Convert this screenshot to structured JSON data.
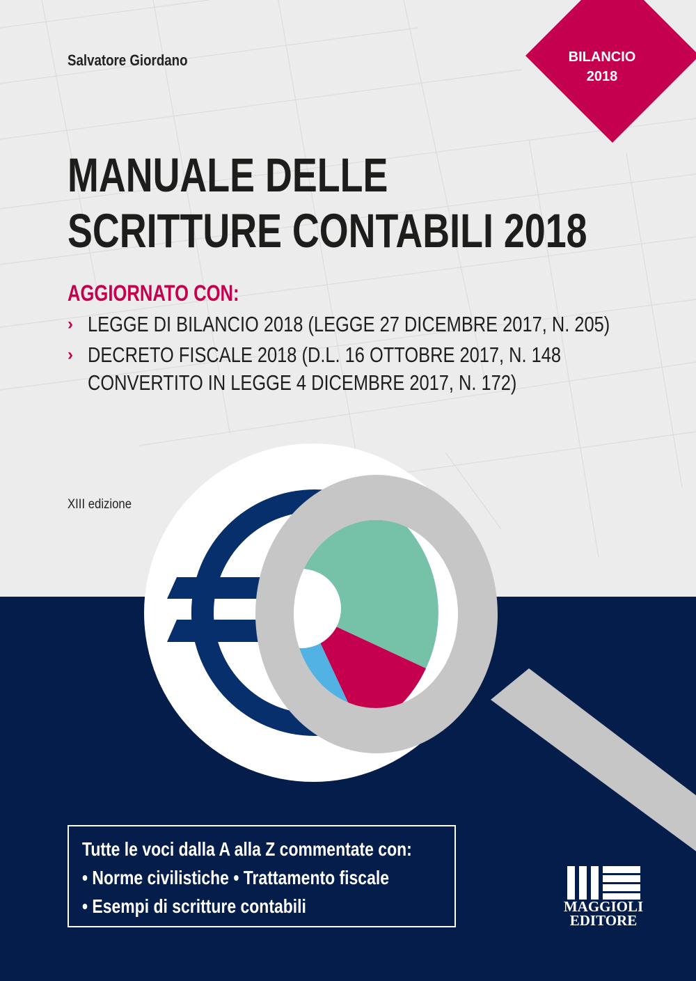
{
  "author": "Salvatore Giordano",
  "badge": {
    "line1": "BILANCIO",
    "line2": "2018"
  },
  "title": {
    "line1": "MANUALE DELLE",
    "line2": "SCRITTURE CONTABILI 2018"
  },
  "updated_heading": "AGGIORNATO CON:",
  "bullet_glyph": "›",
  "updates": [
    {
      "lines": [
        "LEGGE DI BILANCIO 2018 (LEGGE 27 DICEMBRE 2017, N. 205)"
      ]
    },
    {
      "lines": [
        "DECRETO FISCALE 2018 (D.L. 16 OTTOBRE 2017, N. 148",
        "CONVERTITO IN LEGGE 4 DICEMBRE 2017, N. 172)"
      ]
    }
  ],
  "edition": "XIII edizione",
  "illustration": {
    "icons": [
      "euro-icon",
      "magnifier-icon",
      "donut-chart-icon"
    ]
  },
  "features": {
    "heading": "Tutte le voci dalla A alla Z commentate con:",
    "line2": "• Norme civilistiche • Trattamento fiscale",
    "line3": "• Esempi di scritture contabili"
  },
  "publisher": {
    "line1": "MAGGIOLI",
    "line2": "EDITORE"
  },
  "colors": {
    "navy": "#051d4b",
    "crimson": "#c4004f",
    "euro_blue": "#062f6b",
    "teal": "#76c2a8",
    "sky": "#52b2e4",
    "grey": "#c6c6c6",
    "background": "#ececec"
  }
}
